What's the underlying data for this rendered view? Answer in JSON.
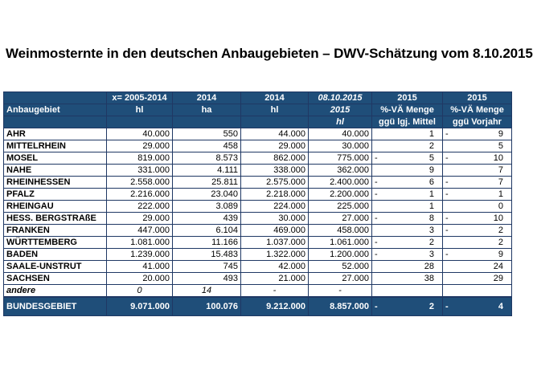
{
  "title": "Weinmosternte in den deutschen Anbaugebieten – DWV-Schätzung vom 8.10.2015",
  "header_row1": [
    "",
    "x= 2005-2014",
    "2014",
    "2014",
    "08.10.2015",
    "2015",
    "2015"
  ],
  "header_row2": [
    "Anbaugebiet",
    "hl",
    "ha",
    "hl",
    "2015",
    "%-VÄ Menge",
    "%-VÄ Menge"
  ],
  "header_row3": [
    "",
    "",
    "",
    "",
    "hl",
    "ggü lgj. Mittel",
    "ggü Vorjahr"
  ],
  "rows": [
    {
      "name": "AHR",
      "avg": "40.000",
      "ha": "550",
      "hl14": "44.000",
      "hl15": "40.000",
      "s1": "",
      "c1": "1",
      "s2": "-",
      "c2": "9",
      "italic": false
    },
    {
      "name": "MITTELRHEIN",
      "avg": "29.000",
      "ha": "458",
      "hl14": "29.000",
      "hl15": "30.000",
      "s1": "",
      "c1": "2",
      "s2": "",
      "c2": "5",
      "italic": false
    },
    {
      "name": "MOSEL",
      "avg": "819.000",
      "ha": "8.573",
      "hl14": "862.000",
      "hl15": "775.000",
      "s1": "-",
      "c1": "5",
      "s2": "-",
      "c2": "10",
      "italic": false
    },
    {
      "name": "NAHE",
      "avg": "331.000",
      "ha": "4.111",
      "hl14": "338.000",
      "hl15": "362.000",
      "s1": "",
      "c1": "9",
      "s2": "",
      "c2": "7",
      "italic": false
    },
    {
      "name": "RHEINHESSEN",
      "avg": "2.558.000",
      "ha": "25.811",
      "hl14": "2.575.000",
      "hl15": "2.400.000",
      "s1": "-",
      "c1": "6",
      "s2": "-",
      "c2": "7",
      "italic": false
    },
    {
      "name": "PFALZ",
      "avg": "2.216.000",
      "ha": "23.040",
      "hl14": "2.218.000",
      "hl15": "2.200.000",
      "s1": "-",
      "c1": "1",
      "s2": "-",
      "c2": "1",
      "italic": false
    },
    {
      "name": "RHEINGAU",
      "avg": "222.000",
      "ha": "3.089",
      "hl14": "224.000",
      "hl15": "225.000",
      "s1": "",
      "c1": "1",
      "s2": "",
      "c2": "0",
      "italic": false
    },
    {
      "name": "HESS. BERGSTRAßE",
      "avg": "29.000",
      "ha": "439",
      "hl14": "30.000",
      "hl15": "27.000",
      "s1": "-",
      "c1": "8",
      "s2": "-",
      "c2": "10",
      "italic": false
    },
    {
      "name": "FRANKEN",
      "avg": "447.000",
      "ha": "6.104",
      "hl14": "469.000",
      "hl15": "458.000",
      "s1": "",
      "c1": "3",
      "s2": "-",
      "c2": "2",
      "italic": false
    },
    {
      "name": "WÜRTTEMBERG",
      "avg": "1.081.000",
      "ha": "11.166",
      "hl14": "1.037.000",
      "hl15": "1.061.000",
      "s1": "-",
      "c1": "2",
      "s2": "",
      "c2": "2",
      "italic": false
    },
    {
      "name": "BADEN",
      "avg": "1.239.000",
      "ha": "15.483",
      "hl14": "1.322.000",
      "hl15": "1.200.000",
      "s1": "-",
      "c1": "3",
      "s2": "-",
      "c2": "9",
      "italic": false
    },
    {
      "name": "SAALE-UNSTRUT",
      "avg": "41.000",
      "ha": "745",
      "hl14": "42.000",
      "hl15": "52.000",
      "s1": "",
      "c1": "28",
      "s2": "",
      "c2": "24",
      "italic": false
    },
    {
      "name": "SACHSEN",
      "avg": "20.000",
      "ha": "493",
      "hl14": "21.000",
      "hl15": "27.000",
      "s1": "",
      "c1": "38",
      "s2": "",
      "c2": "29",
      "italic": false
    },
    {
      "name": "andere",
      "avg": "0",
      "ha": "14",
      "hl14": "-",
      "hl15": "-",
      "s1": "",
      "c1": "",
      "s2": "",
      "c2": "",
      "italic": true
    }
  ],
  "total": {
    "name": "BUNDESGEBIET",
    "avg": "9.071.000",
    "ha": "100.076",
    "hl14": "9.212.000",
    "hl15": "8.857.000",
    "s1": "-",
    "c1": "2",
    "s2": "-",
    "c2": "4"
  },
  "colors": {
    "header_bg": "#1f4e79",
    "border": "#1f3864"
  }
}
